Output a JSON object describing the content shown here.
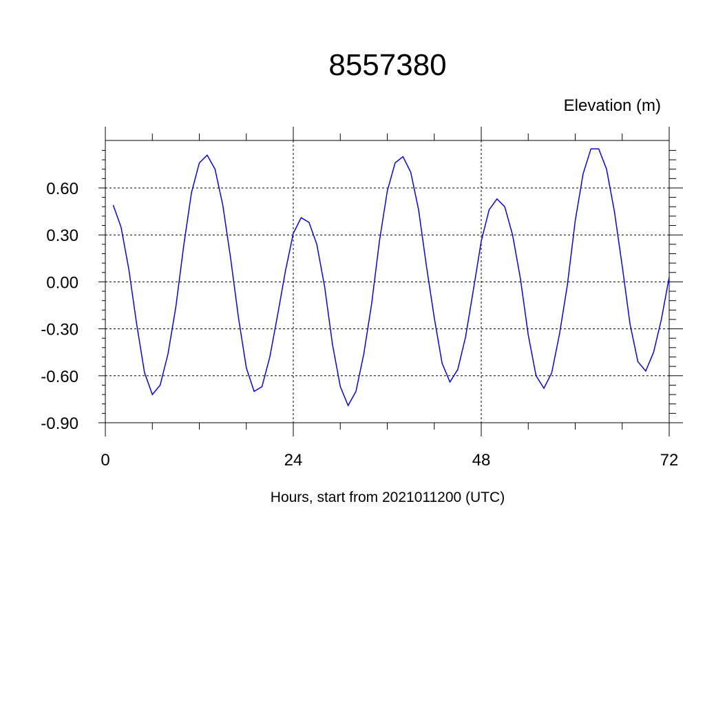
{
  "chart_data": {
    "type": "line",
    "title": "8557380",
    "ylabel": "Elevation (m)",
    "xlabel": "Hours, start from 2021011200 (UTC)",
    "xlim": [
      0,
      72
    ],
    "ylim": [
      -0.9,
      0.9
    ],
    "x_ticks": [
      0,
      24,
      48,
      72
    ],
    "x_tick_labels": [
      "0",
      "24",
      "48",
      "72"
    ],
    "y_ticks": [
      -0.9,
      -0.6,
      -0.3,
      0.0,
      0.3,
      0.6
    ],
    "y_tick_labels": [
      "-0.90",
      "-0.60",
      "-0.30",
      "0.00",
      "0.30",
      "0.60"
    ],
    "grid": true,
    "series_color": "#0000ff",
    "series": [
      {
        "x": [
          1,
          2,
          3,
          4,
          5,
          6,
          7,
          8,
          9,
          10,
          11,
          12,
          13,
          14,
          15,
          16,
          17,
          18,
          19,
          20,
          21,
          22,
          23,
          24,
          25,
          26,
          27,
          28,
          29,
          30,
          31,
          32,
          33,
          34,
          35,
          36,
          37,
          38,
          39,
          40,
          41,
          42,
          43,
          44,
          45,
          46,
          47,
          48,
          49,
          50,
          51,
          52,
          53,
          54,
          55,
          56,
          57,
          58,
          59,
          60,
          61,
          62,
          63,
          64,
          65,
          66,
          67,
          68,
          69,
          70,
          71,
          72
        ],
        "values": [
          0.49,
          0.35,
          0.08,
          -0.27,
          -0.58,
          -0.72,
          -0.66,
          -0.46,
          -0.16,
          0.23,
          0.57,
          0.76,
          0.81,
          0.72,
          0.49,
          0.15,
          -0.23,
          -0.55,
          -0.7,
          -0.67,
          -0.48,
          -0.21,
          0.07,
          0.31,
          0.41,
          0.38,
          0.24,
          -0.03,
          -0.4,
          -0.67,
          -0.79,
          -0.7,
          -0.46,
          -0.14,
          0.26,
          0.58,
          0.76,
          0.8,
          0.7,
          0.46,
          0.1,
          -0.23,
          -0.52,
          -0.64,
          -0.56,
          -0.35,
          -0.05,
          0.26,
          0.46,
          0.53,
          0.48,
          0.3,
          0.02,
          -0.34,
          -0.6,
          -0.68,
          -0.58,
          -0.33,
          -0.02,
          0.39,
          0.69,
          0.85,
          0.85,
          0.72,
          0.45,
          0.1,
          -0.27,
          -0.51,
          -0.57,
          -0.45,
          -0.24,
          0.03
        ]
      }
    ]
  }
}
